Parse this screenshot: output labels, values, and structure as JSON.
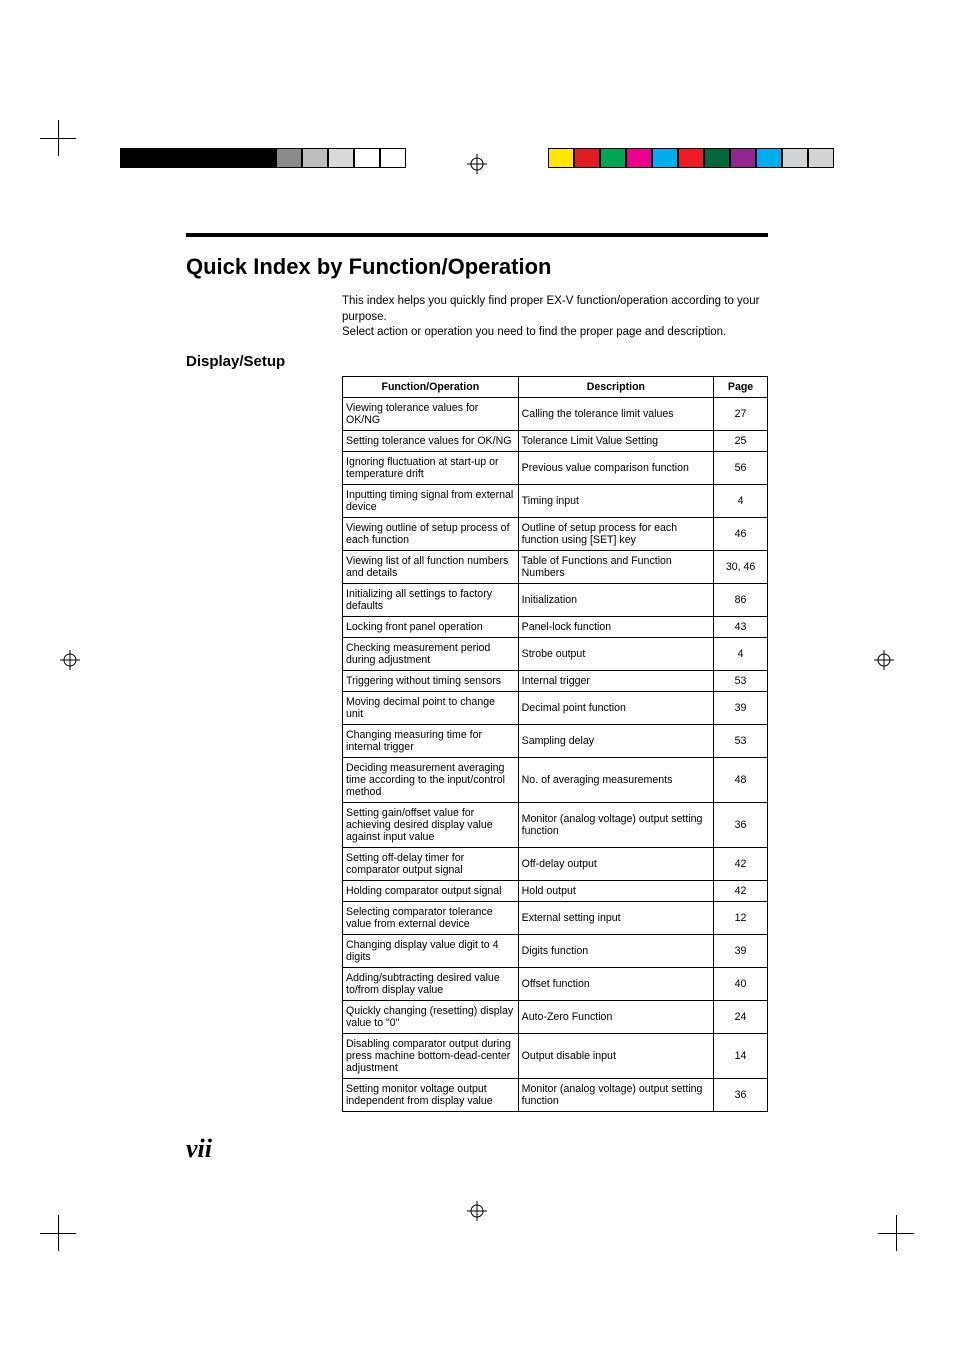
{
  "title": "Quick Index by Function/Operation",
  "intro_line1": "This index helps you quickly find proper EX-V function/operation according to your purpose.",
  "intro_line2": "Select action or operation you need to find the proper page and description.",
  "section": "Display/Setup",
  "page_label": "vii",
  "headers": {
    "func": "Function/Operation",
    "desc": "Description",
    "page": "Page"
  },
  "left_bar_colors": [
    "#000000",
    "#000000",
    "#000000",
    "#000000",
    "#000000",
    "#000000",
    "#8a8a8a",
    "#bdbdbd",
    "#d9d9d9",
    "#ffffff",
    "#ffffff"
  ],
  "right_bar_colors": [
    "#ffe600",
    "#e31b23",
    "#00a651",
    "#ec008c",
    "#00aeef",
    "#ed1c24",
    "#006838",
    "#92278f",
    "#00adee",
    "#d1d3d4",
    "#d1d3d4"
  ],
  "rows": [
    {
      "f": "Viewing tolerance values for OK/NG",
      "d": "Calling the tolerance limit values",
      "p": "27"
    },
    {
      "f": "Setting tolerance values for OK/NG",
      "d": "Tolerance Limit Value Setting",
      "p": "25"
    },
    {
      "f": "Ignoring fluctuation at start-up or temperature drift",
      "d": "Previous value comparison function",
      "p": "56"
    },
    {
      "f": "Inputting timing signal from external device",
      "d": "Timing input",
      "p": "4"
    },
    {
      "f": "Viewing outline of setup process of each function",
      "d": "Outline of setup process for each function using [SET] key",
      "p": "46"
    },
    {
      "f": "Viewing list of all function numbers and details",
      "d": "Table of Functions and Function Numbers",
      "p": "30, 46"
    },
    {
      "f": "Initializing all settings to factory defaults",
      "d": "Initialization",
      "p": "86"
    },
    {
      "f": "Locking front panel operation",
      "d": "Panel-lock function",
      "p": "43"
    },
    {
      "f": "Checking measurement period during adjustment",
      "d": "Strobe output",
      "p": "4"
    },
    {
      "f": "Triggering without timing sensors",
      "d": "Internal trigger",
      "p": "53"
    },
    {
      "f": "Moving decimal point to change unit",
      "d": "Decimal point function",
      "p": "39"
    },
    {
      "f": "Changing measuring time for internal trigger",
      "d": "Sampling delay",
      "p": "53"
    },
    {
      "f": "Deciding measurement averaging time according to the input/control method",
      "d": "No. of averaging measurements",
      "p": "48"
    },
    {
      "f": "Setting gain/offset value for achieving desired display value against input value",
      "d": "Monitor (analog voltage) output setting function",
      "p": "36"
    },
    {
      "f": "Setting off-delay timer for comparator output signal",
      "d": "Off-delay output",
      "p": "42"
    },
    {
      "f": "Holding comparator output signal",
      "d": "Hold output",
      "p": "42"
    },
    {
      "f": "Selecting comparator tolerance value from external device",
      "d": "External setting input",
      "p": "12"
    },
    {
      "f": "Changing display value digit to 4 digits",
      "d": "Digits function",
      "p": "39"
    },
    {
      "f": "Adding/subtracting desired value to/from display value",
      "d": "Offset function",
      "p": "40"
    },
    {
      "f": "Quickly changing (resetting) display value to \"0\"",
      "d": "Auto-Zero Function",
      "p": "24"
    },
    {
      "f": "Disabling comparator output during press machine bottom-dead-center adjustment",
      "d": "Output disable input",
      "p": "14"
    },
    {
      "f": "Setting monitor voltage output independent from display value",
      "d": "Monitor (analog voltage) output setting function",
      "p": "36"
    }
  ]
}
